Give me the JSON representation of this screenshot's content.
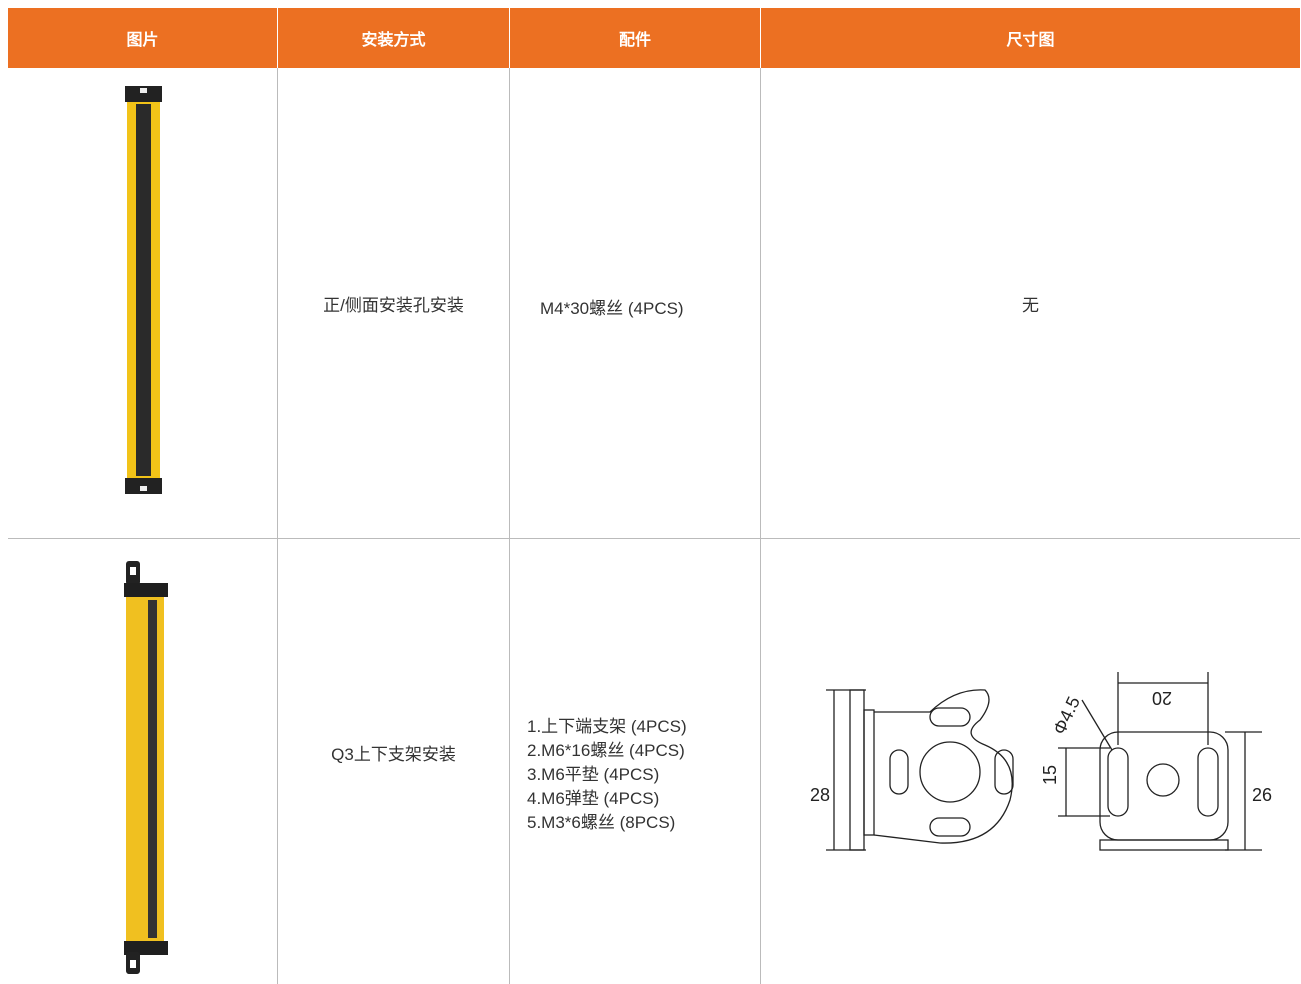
{
  "table": {
    "header": [
      "图片",
      "安装方式",
      "配件",
      "尺寸图"
    ],
    "rows": [
      {
        "method": "正/侧面安装孔安装",
        "accessories": [
          "M4*30螺丝 (4PCS)"
        ],
        "dimension": "无"
      },
      {
        "method": "Q3上下支架安装",
        "accessories": [
          "1.上下端支架 (4PCS)",
          "2.M6*16螺丝 (4PCS)",
          "3.M6平垫 (4PCS)",
          "4.M6弹垫 (4PCS)",
          "5.M3*6螺丝 (8PCS)"
        ],
        "dimension_labels": {
          "height_left": "28",
          "slot": "15",
          "height_right": "26",
          "spacing": "20",
          "hole": "Φ4.5"
        }
      }
    ]
  }
}
